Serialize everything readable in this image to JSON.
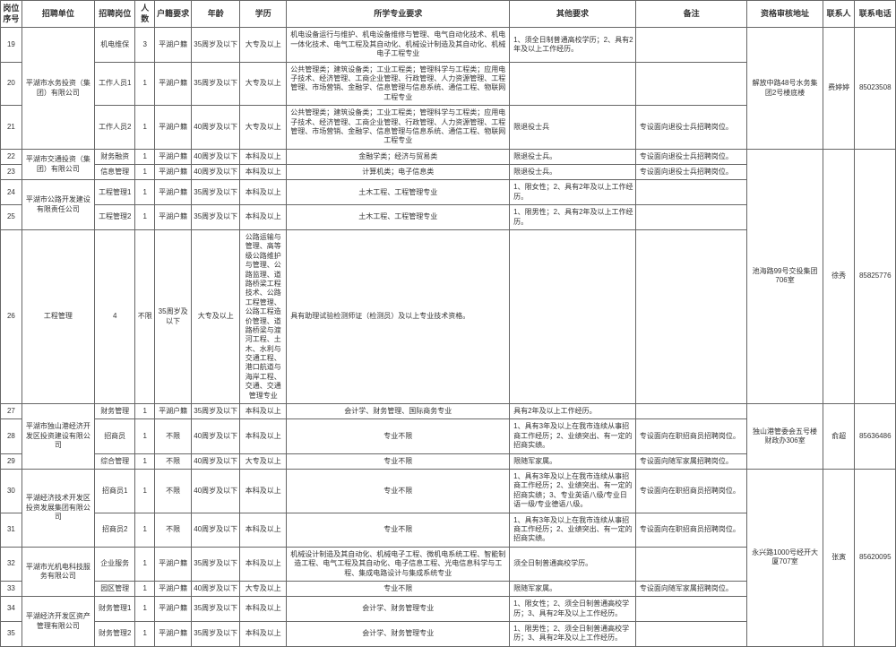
{
  "headers": {
    "seq": "岗位序号",
    "unit": "招聘单位",
    "pos": "招聘岗位",
    "num": "人数",
    "huji": "户籍要求",
    "age": "年龄",
    "edu": "学历",
    "major": "所学专业要求",
    "other": "其他要求",
    "note": "备注",
    "addr": "资格审核地址",
    "contact": "联系人",
    "tel": "联系电话"
  },
  "rows": [
    {
      "seq": "19",
      "unit": "平湖市水务投资（集团）有限公司",
      "pos": "机电维保",
      "num": "3",
      "huji": "平湖户籍",
      "age": "35周岁及以下",
      "edu": "大专及以上",
      "major": "机电设备运行与维护、机电设备维修与管理、电气自动化技术、机电一体化技术、电气工程及其自动化、机械设计制造及其自动化、机械电子工程专业",
      "other": "1、须全日制普通高校学历；2、具有2年及以上工作经历。",
      "note": "",
      "addr": "解放中路48号水务集团2号楼底楼",
      "contact": "费婷婷",
      "tel": "85023508"
    },
    {
      "seq": "20",
      "unit": "",
      "pos": "工作人员1",
      "num": "1",
      "huji": "平湖户籍",
      "age": "35周岁及以下",
      "edu": "大专及以上",
      "major": "公共管理类；建筑设备类；工业工程类；管理科学与工程类；应用电子技术、经济管理、工商企业管理、行政管理、人力资源管理、工程管理、市场营销、金融学、信息管理与信息系统、通信工程、物联网工程专业",
      "other": "",
      "note": "",
      "addr": "",
      "contact": "",
      "tel": ""
    },
    {
      "seq": "21",
      "unit": "",
      "pos": "工作人员2",
      "num": "1",
      "huji": "平湖户籍",
      "age": "40周岁及以下",
      "edu": "大专及以上",
      "major": "公共管理类；建筑设备类；工业工程类；管理科学与工程类；应用电子技术、经济管理、工商企业管理、行政管理、人力资源管理、工程管理、市场营销、金融学、信息管理与信息系统、通信工程、物联网工程专业",
      "other": "限退役士兵",
      "note": "专设面向退役士兵招聘岗位。",
      "addr": "",
      "contact": "",
      "tel": ""
    },
    {
      "seq": "22",
      "unit": "平湖市交通投资（集团）有限公司",
      "pos": "财务融资",
      "num": "1",
      "huji": "平湖户籍",
      "age": "40周岁及以下",
      "edu": "本科及以上",
      "major": "金融学类；经济与贸易类",
      "other": "限退役士兵。",
      "note": "专设面向退役士兵招聘岗位。",
      "addr": "池海路99号交投集团706室",
      "contact": "徐秀",
      "tel": "85825776"
    },
    {
      "seq": "23",
      "unit": "",
      "pos": "信息管理",
      "num": "1",
      "huji": "平湖户籍",
      "age": "40周岁及以下",
      "edu": "本科及以上",
      "major": "计算机类；电子信息类",
      "other": "限退役士兵。",
      "note": "专设面向退役士兵招聘岗位。",
      "addr": "",
      "contact": "",
      "tel": ""
    },
    {
      "seq": "24",
      "unit": "平湖市公路开发建设有限责任公司",
      "pos": "工程管理1",
      "num": "1",
      "huji": "平湖户籍",
      "age": "35周岁及以下",
      "edu": "本科及以上",
      "major": "土木工程、工程管理专业",
      "other": "1、限女性；2、具有2年及以上工作经历。",
      "note": "",
      "addr": "",
      "contact": "",
      "tel": ""
    },
    {
      "seq": "25",
      "unit": "",
      "pos": "工程管理2",
      "num": "1",
      "huji": "平湖户籍",
      "age": "35周岁及以下",
      "edu": "本科及以上",
      "major": "土木工程、工程管理专业",
      "other": "1、限男性；2、具有2年及以上工作经历。",
      "note": "",
      "addr": "",
      "contact": "",
      "tel": ""
    },
    {
      "seq": "26",
      "unit": "平湖市交通工程建设有限公司",
      "pos": "工程管理",
      "num": "4",
      "huji": "不限",
      "age": "35周岁及以下",
      "edu": "大专及以上",
      "major": "公路运输与管理、高等级公路维护与管理、公路监理、道路桥梁工程技术、公路工程管理、公路工程造价管理、道路桥梁与渡河工程、土木、水利与交通工程、港口航道与海岸工程、交通、交通管理专业",
      "other": "具有助理试验检测师证（检测员）及以上专业技术资格。",
      "note": "",
      "addr": "",
      "contact": "",
      "tel": ""
    },
    {
      "seq": "27",
      "unit": "平湖市独山港经济开发区投资建设有限公司",
      "pos": "财务管理",
      "num": "1",
      "huji": "平湖户籍",
      "age": "35周岁及以下",
      "edu": "本科及以上",
      "major": "会计学、财务管理、国际商务专业",
      "other": "具有2年及以上工作经历。",
      "note": "",
      "addr": "独山港管委会五号楼财政办306室",
      "contact": "俞超",
      "tel": "85636486"
    },
    {
      "seq": "28",
      "unit": "",
      "pos": "招商员",
      "num": "1",
      "huji": "不限",
      "age": "40周岁及以下",
      "edu": "本科及以上",
      "major": "专业不限",
      "other": "1、具有3年及以上在我市连续从事招商工作经历；2、业绩突出、有一定的招商实绩。",
      "note": "专设面向在职招商员招聘岗位。",
      "addr": "",
      "contact": "",
      "tel": ""
    },
    {
      "seq": "29",
      "unit": "",
      "pos": "综合管理",
      "num": "1",
      "huji": "不限",
      "age": "40周岁及以下",
      "edu": "大专及以上",
      "major": "专业不限",
      "other": "限随军家属。",
      "note": "专设面向随军家属招聘岗位。",
      "addr": "",
      "contact": "",
      "tel": ""
    },
    {
      "seq": "30",
      "unit": "平湖经济技术开发区投资发展集团有限公司",
      "pos": "招商员1",
      "num": "1",
      "huji": "不限",
      "age": "40周岁及以下",
      "edu": "本科及以上",
      "major": "专业不限",
      "other": "1、具有3年及以上在我市连续从事招商工作经历；2、业绩突出、有一定的招商实绩；3、专业英语八级/专业日语一级/专业德语八级。",
      "note": "专设面向在职招商员招聘岗位。",
      "addr": "永兴路1000号经开大厦707室",
      "contact": "张寅",
      "tel": "85620095"
    },
    {
      "seq": "31",
      "unit": "",
      "pos": "招商员2",
      "num": "1",
      "huji": "不限",
      "age": "40周岁及以下",
      "edu": "本科及以上",
      "major": "专业不限",
      "other": "1、具有3年及以上在我市连续从事招商工作经历；2、业绩突出、有一定的招商实绩。",
      "note": "专设面向在职招商员招聘岗位。",
      "addr": "",
      "contact": "",
      "tel": ""
    },
    {
      "seq": "32",
      "unit": "平湖市光机电科技服务有限公司",
      "pos": "企业服务",
      "num": "1",
      "huji": "平湖户籍",
      "age": "35周岁及以下",
      "edu": "本科及以上",
      "major": "机械设计制造及其自动化、机械电子工程、微机电系统工程、智能制造工程、电气工程及其自动化、电子信息工程、光电信息科学与工程、集成电路设计与集成系统专业",
      "other": "须全日制普通高校学历。",
      "note": "",
      "addr": "",
      "contact": "",
      "tel": ""
    },
    {
      "seq": "33",
      "unit": "",
      "pos": "园区管理",
      "num": "1",
      "huji": "平湖户籍",
      "age": "40周岁及以下",
      "edu": "大专及以上",
      "major": "专业不限",
      "other": "限随军家属。",
      "note": "专设面向随军家属招聘岗位。",
      "addr": "",
      "contact": "",
      "tel": ""
    },
    {
      "seq": "34",
      "unit": "平湖经济开发区资产管理有限公司",
      "pos": "财务管理1",
      "num": "1",
      "huji": "平湖户籍",
      "age": "35周岁及以下",
      "edu": "本科及以上",
      "major": "会计学、财务管理专业",
      "other": "1、限女性；2、须全日制普通高校学历；3、具有2年及以上工作经历。",
      "note": "",
      "addr": "",
      "contact": "",
      "tel": ""
    },
    {
      "seq": "35",
      "unit": "",
      "pos": "财务管理2",
      "num": "1",
      "huji": "平湖户籍",
      "age": "35周岁及以下",
      "edu": "本科及以上",
      "major": "会计学、财务管理专业",
      "other": "1、限男性；2、须全日制普通高校学历；3、具有2年及以上工作经历。",
      "note": "",
      "addr": "",
      "contact": "",
      "tel": ""
    }
  ],
  "unitSpans": {
    "19": 3,
    "22": 2,
    "24": 2,
    "27": 3,
    "30": 2,
    "32": 2,
    "34": 2
  },
  "addrSpans": {
    "19": 3,
    "22": 5,
    "27": 3,
    "30": 6
  },
  "contactSpans": {
    "19": 3,
    "22": 5,
    "27": 3,
    "30": 6
  },
  "telSpans": {
    "19": 3,
    "22": 5,
    "27": 3,
    "30": 6
  }
}
